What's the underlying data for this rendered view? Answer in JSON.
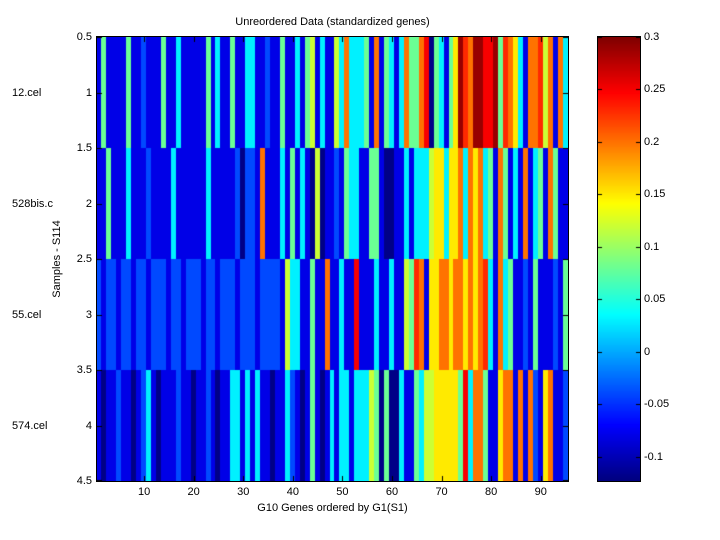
{
  "chart_data": {
    "type": "heatmap",
    "title": "Unreordered Data (standardized genes)",
    "xlabel": "G10 Genes ordered by G1(S1)",
    "ylabel": "Samples - S114",
    "row_labels": [
      "12.cel",
      "528bis.c",
      "55.cel",
      "574.cel"
    ],
    "y_tick_labels": [
      "0.5",
      "1",
      "1.5",
      "2",
      "2.5",
      "3",
      "3.5",
      "4",
      "4.5"
    ],
    "x_tick_values": [
      10,
      20,
      30,
      40,
      50,
      60,
      70,
      80,
      90
    ],
    "n_cols": 95,
    "n_rows": 4,
    "colormap": "jet",
    "clim": [
      -0.123,
      0.3
    ],
    "colorbar_tick_labels": [
      "0.3",
      "0.25",
      "0.2",
      "0.15",
      "0.1",
      "0.05",
      "0",
      "-0.05",
      "-0.1"
    ],
    "colorbar_tick_values": [
      0.3,
      0.25,
      0.2,
      0.15,
      0.1,
      0.05,
      0,
      -0.05,
      -0.1
    ],
    "legend_position": "right-colorbar",
    "grid": false,
    "values": [
      [
        -0.08,
        0.08,
        -0.08,
        -0.08,
        -0.08,
        -0.08,
        0.08,
        -0.08,
        -0.08,
        -0.04,
        -0.08,
        -0.08,
        -0.08,
        0.08,
        -0.08,
        -0.08,
        0.03,
        -0.08,
        -0.08,
        -0.08,
        -0.08,
        -0.08,
        0.08,
        -0.08,
        0.03,
        -0.08,
        -0.08,
        0.08,
        -0.08,
        -0.08,
        0.03,
        0.03,
        -0.08,
        -0.08,
        -0.04,
        -0.08,
        -0.08,
        0.08,
        -0.08,
        -0.08,
        0.03,
        -0.08,
        0.08,
        0.12,
        -0.08,
        0.03,
        -0.08,
        -0.08,
        0.12,
        0.03,
        0.2,
        0.03,
        0.03,
        0.03,
        0.08,
        -0.08,
        0.2,
        -0.08,
        0.08,
        0.03,
        -0.08,
        0.03,
        0.2,
        0.08,
        0.08,
        0.2,
        0.25,
        -0.12,
        0.08,
        0.03,
        -0.08,
        0.08,
        0.15,
        0.29,
        0.23,
        0.2,
        0.29,
        0.29,
        0.25,
        0.25,
        0.29,
        0.08,
        0.23,
        0.2,
        0.15,
        0.03,
        -0.08,
        0.2,
        0.2,
        0.23,
        0.12,
        0.2,
        -0.08,
        0.2,
        0.03
      ],
      [
        -0.08,
        -0.08,
        0.08,
        -0.08,
        -0.08,
        -0.08,
        0.03,
        -0.08,
        -0.08,
        -0.08,
        -0.04,
        -0.08,
        -0.08,
        -0.08,
        -0.08,
        0.03,
        -0.08,
        -0.08,
        -0.08,
        -0.08,
        -0.08,
        -0.08,
        0.03,
        -0.08,
        -0.08,
        -0.08,
        -0.08,
        -0.08,
        -0.04,
        -0.12,
        -0.04,
        -0.04,
        -0.08,
        0.2,
        -0.08,
        -0.08,
        -0.08,
        0.03,
        -0.08,
        0.08,
        -0.08,
        0.03,
        -0.08,
        -0.12,
        0.12,
        -0.12,
        -0.08,
        -0.08,
        -0.04,
        -0.08,
        0.08,
        0.03,
        0.03,
        -0.08,
        -0.08,
        0.08,
        0.08,
        -0.08,
        -0.12,
        -0.12,
        -0.08,
        -0.08,
        0.03,
        -0.08,
        0.03,
        0.03,
        0.03,
        0.12,
        0.15,
        0.15,
        0.03,
        0.15,
        0.15,
        0.2,
        0.03,
        0.2,
        0.15,
        0.2,
        0.03,
        0.08,
        -0.08,
        0.2,
        0.08,
        -0.08,
        0.03,
        -0.08,
        0.2,
        -0.08,
        0.03,
        0.08,
        -0.08,
        0.2,
        0.08,
        -0.08,
        -0.08
      ],
      [
        -0.04,
        -0.08,
        -0.04,
        -0.04,
        -0.08,
        -0.04,
        -0.04,
        -0.08,
        -0.04,
        -0.04,
        -0.08,
        -0.04,
        -0.04,
        -0.04,
        -0.08,
        -0.04,
        -0.04,
        -0.08,
        -0.04,
        -0.04,
        -0.04,
        -0.08,
        -0.04,
        -0.04,
        -0.08,
        -0.04,
        -0.04,
        -0.04,
        -0.08,
        -0.04,
        -0.04,
        -0.04,
        -0.08,
        -0.04,
        -0.04,
        -0.04,
        -0.04,
        -0.08,
        0.12,
        0.03,
        0.03,
        -0.08,
        -0.08,
        0.08,
        -0.08,
        -0.08,
        0.2,
        -0.08,
        -0.08,
        0.03,
        -0.08,
        -0.08,
        0.25,
        -0.08,
        -0.08,
        -0.08,
        0.03,
        -0.08,
        -0.08,
        0.03,
        -0.08,
        -0.08,
        0.12,
        0.08,
        0.23,
        0.2,
        -0.08,
        0.15,
        0.15,
        0.2,
        0.2,
        0.15,
        0.2,
        0.2,
        0.15,
        0.2,
        0.15,
        0.2,
        0.23,
        0.03,
        -0.08,
        0.2,
        0.03,
        0.08,
        -0.08,
        -0.08,
        -0.04,
        -0.08,
        0.08,
        -0.08,
        -0.08,
        -0.08,
        -0.04,
        -0.08,
        0.08
      ],
      [
        -0.08,
        -0.12,
        -0.08,
        -0.08,
        -0.04,
        -0.08,
        -0.08,
        -0.12,
        -0.08,
        -0.04,
        0.03,
        -0.08,
        -0.12,
        -0.08,
        -0.08,
        -0.08,
        -0.04,
        -0.08,
        -0.08,
        -0.12,
        -0.08,
        -0.08,
        -0.04,
        -0.08,
        -0.12,
        -0.08,
        -0.08,
        0.03,
        0.03,
        -0.08,
        0.03,
        -0.08,
        0.03,
        -0.08,
        -0.08,
        -0.12,
        -0.08,
        -0.08,
        0.03,
        -0.04,
        -0.08,
        -0.12,
        -0.08,
        0.08,
        -0.08,
        -0.12,
        -0.08,
        0.03,
        -0.08,
        0.03,
        0.03,
        -0.08,
        0.03,
        0.03,
        0.03,
        0.12,
        0.08,
        -0.12,
        0.08,
        -0.12,
        -0.12,
        0.03,
        -0.08,
        -0.08,
        0.08,
        0.03,
        0.12,
        0.12,
        0.15,
        0.15,
        0.15,
        0.15,
        0.15,
        0.08,
        0.25,
        0.03,
        0.2,
        0.2,
        0.08,
        -0.08,
        -0.08,
        0.15,
        0.2,
        0.2,
        -0.08,
        0.2,
        -0.08,
        0.2,
        -0.04,
        -0.08,
        0.15,
        0.2,
        -0.08,
        -0.08,
        -0.04
      ]
    ]
  }
}
